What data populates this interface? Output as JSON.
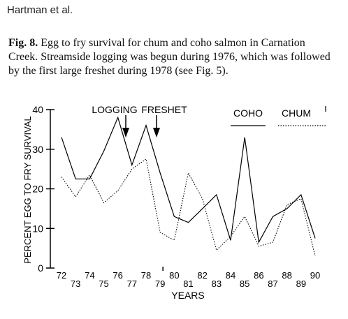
{
  "header": {
    "author": "Hartman et al."
  },
  "caption": {
    "label": "Fig. 8.",
    "text": "Egg to fry survival for chum and coho salmon in Carnation Creek. Streamside logging was begun during 1976, which was followed by the first large freshet during 1978 (see Fig. 5)."
  },
  "chart_data": {
    "type": "line",
    "title": "",
    "xlabel": "YEARS",
    "ylabel": "PERCENT EGG TO FRY SURVIVAL",
    "xlim": [
      72,
      90
    ],
    "ylim": [
      0,
      40
    ],
    "yticks": [
      "0",
      "10",
      "20",
      "30",
      "40"
    ],
    "xticks": [
      "72",
      "73",
      "74",
      "75",
      "76",
      "77",
      "78",
      "79",
      "80",
      "81",
      "82",
      "83",
      "84",
      "85",
      "86",
      "87",
      "88",
      "89",
      "90"
    ],
    "series": [
      {
        "name": "COHO",
        "style": "solid",
        "x": [
          72,
          73,
          74,
          75,
          76,
          77,
          78,
          79,
          80,
          81,
          82,
          83,
          84,
          85,
          86,
          87,
          88,
          89,
          90
        ],
        "values": [
          33,
          22.5,
          22.5,
          29.5,
          38,
          26,
          36,
          24,
          13,
          11.5,
          15,
          18.5,
          7,
          33,
          6.5,
          13,
          15,
          18.5,
          7.5
        ]
      },
      {
        "name": "CHUM",
        "style": "dotted",
        "x": [
          72,
          73,
          74,
          75,
          76,
          77,
          78,
          79,
          80,
          81,
          82,
          83,
          84,
          85,
          86,
          87,
          88,
          89,
          90
        ],
        "values": [
          23,
          18,
          23.5,
          16.5,
          19.5,
          25,
          27.5,
          9,
          7,
          24,
          17.5,
          4.5,
          8,
          13,
          5.5,
          6.5,
          16,
          17.5,
          3
        ]
      }
    ],
    "annotations": [
      {
        "text": "LOGGING",
        "x": 76
      },
      {
        "text": "FRESHET",
        "x": 78
      }
    ],
    "legend": {
      "placement": "top-right"
    }
  }
}
